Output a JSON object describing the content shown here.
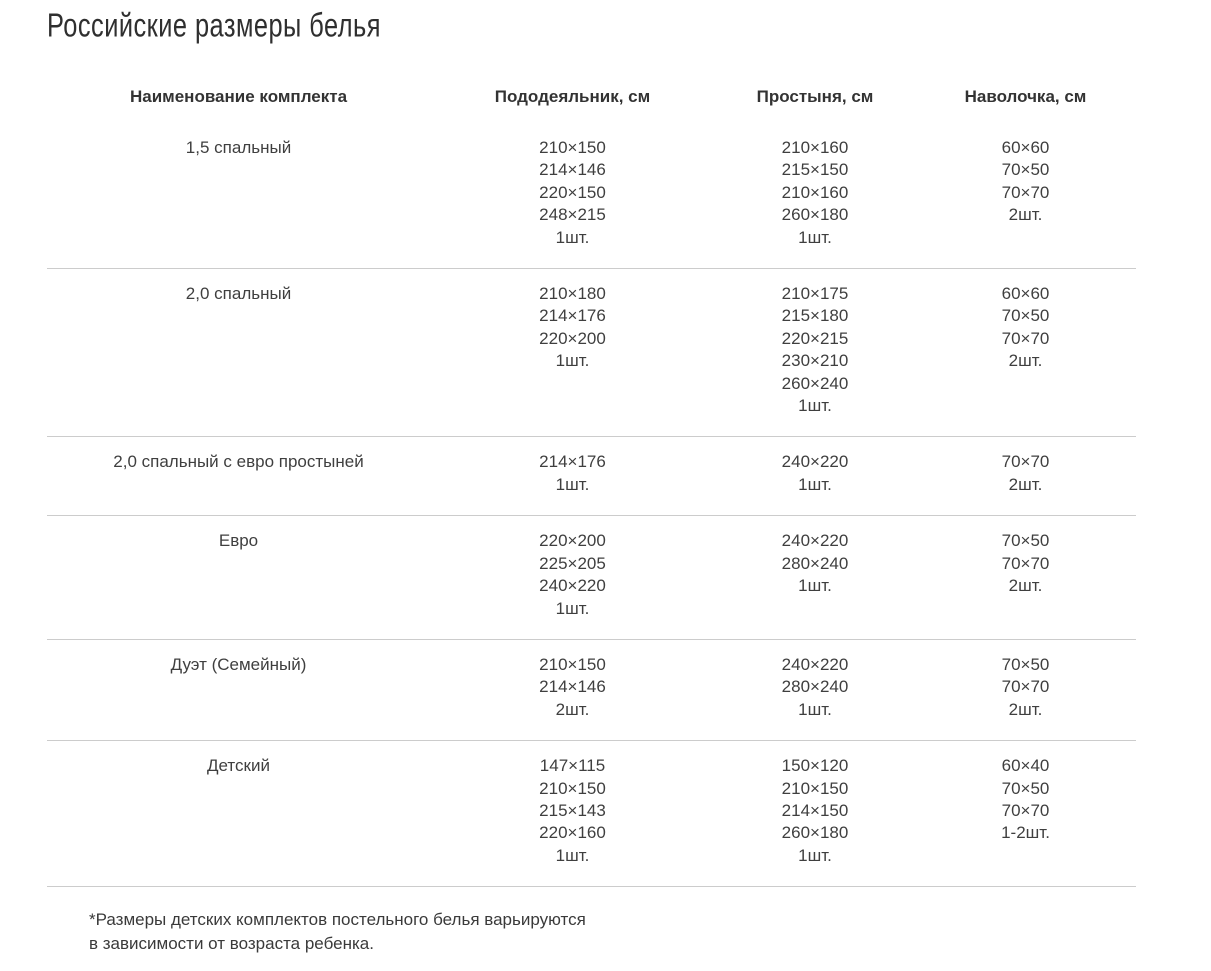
{
  "page": {
    "title": "Российские размеры белья",
    "footnote": "*Размеры детских комплектов постельного белья варьируются\nв зависимости от возраста ребенка."
  },
  "colors": {
    "text": "#3f3f3f",
    "divider": "#cccccc"
  },
  "table": {
    "headers": {
      "set_name": "Наименование комплекта",
      "duvet_cover": "Пододеяльник, см",
      "sheet": "Простыня, см",
      "pillowcase": "Наволочка, см"
    },
    "rows": [
      {
        "name": "1,5 спальный",
        "duvet_cover": [
          "210×150",
          "214×146",
          "220×150",
          "248×215",
          "1шт."
        ],
        "sheet": [
          "210×160",
          "215×150",
          "210×160",
          "260×180",
          "1шт."
        ],
        "pillowcase": [
          "60×60",
          "70×50",
          "70×70",
          "2шт."
        ]
      },
      {
        "name": "2,0 спальный",
        "duvet_cover": [
          "210×180",
          "214×176",
          "220×200",
          "1шт."
        ],
        "sheet": [
          "210×175",
          "215×180",
          "220×215",
          "230×210",
          "260×240",
          "1шт."
        ],
        "pillowcase": [
          "60×60",
          "70×50",
          "70×70",
          "2шт."
        ]
      },
      {
        "name": "2,0 спальный с евро простыней",
        "duvet_cover": [
          "214×176",
          "1шт."
        ],
        "sheet": [
          "240×220",
          "1шт."
        ],
        "pillowcase": [
          "70×70",
          "2шт."
        ]
      },
      {
        "name": "Евро",
        "duvet_cover": [
          "220×200",
          "225×205",
          "240×220",
          "1шт."
        ],
        "sheet": [
          "240×220",
          "280×240",
          "1шт."
        ],
        "pillowcase": [
          "70×50",
          "70×70",
          "2шт."
        ]
      },
      {
        "name": "Дуэт (Семейный)",
        "duvet_cover": [
          "210×150",
          "214×146",
          "2шт."
        ],
        "sheet": [
          "240×220",
          "280×240",
          "1шт."
        ],
        "pillowcase": [
          "70×50",
          "70×70",
          "2шт."
        ]
      },
      {
        "name": "Детский",
        "duvet_cover": [
          "147×115",
          "210×150",
          "215×143",
          "220×160",
          "1шт."
        ],
        "sheet": [
          "150×120",
          "210×150",
          "214×150",
          "260×180",
          "1шт."
        ],
        "pillowcase": [
          "60×40",
          "70×50",
          "70×70",
          "1-2шт."
        ]
      }
    ]
  }
}
